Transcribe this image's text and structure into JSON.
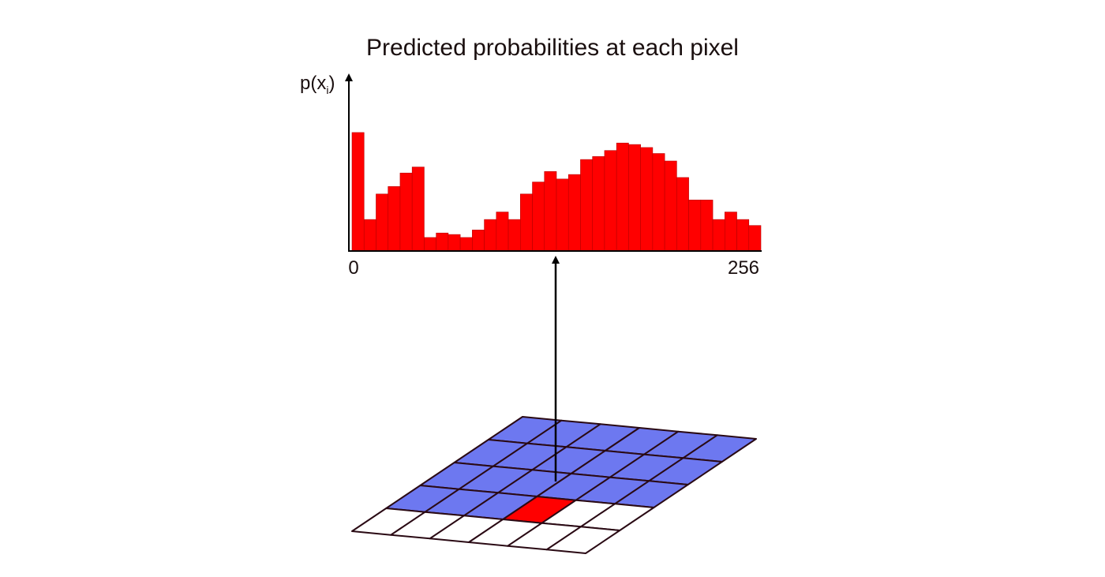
{
  "title": "Predicted probabilities at each pixel",
  "y_label": {
    "main": "p(x",
    "sub": "i",
    "close": ")"
  },
  "x_tick_start": "0",
  "x_tick_end": "256",
  "colors": {
    "bar": "#ff0000",
    "context_cell": "#6d78f0",
    "current_cell": "#ff0000",
    "empty_cell": "#ffffff",
    "grid_line": "#2a0a14",
    "axis": "#000000"
  },
  "chart_data": {
    "type": "bar",
    "title": "Predicted probabilities at each pixel",
    "xlabel": "",
    "ylabel": "p(x_i)",
    "xlim": [
      0,
      256
    ],
    "bin_count": 34,
    "values": [
      0.79,
      0.21,
      0.38,
      0.43,
      0.52,
      0.56,
      0.09,
      0.12,
      0.11,
      0.09,
      0.14,
      0.21,
      0.26,
      0.21,
      0.38,
      0.46,
      0.53,
      0.48,
      0.51,
      0.61,
      0.63,
      0.67,
      0.72,
      0.71,
      0.69,
      0.65,
      0.6,
      0.49,
      0.34,
      0.34,
      0.21,
      0.26,
      0.21,
      0.17
    ]
  },
  "grid": {
    "rows": 5,
    "cols": 6,
    "context_rows": 3,
    "current_cell": {
      "row": 3,
      "col": 3
    }
  }
}
